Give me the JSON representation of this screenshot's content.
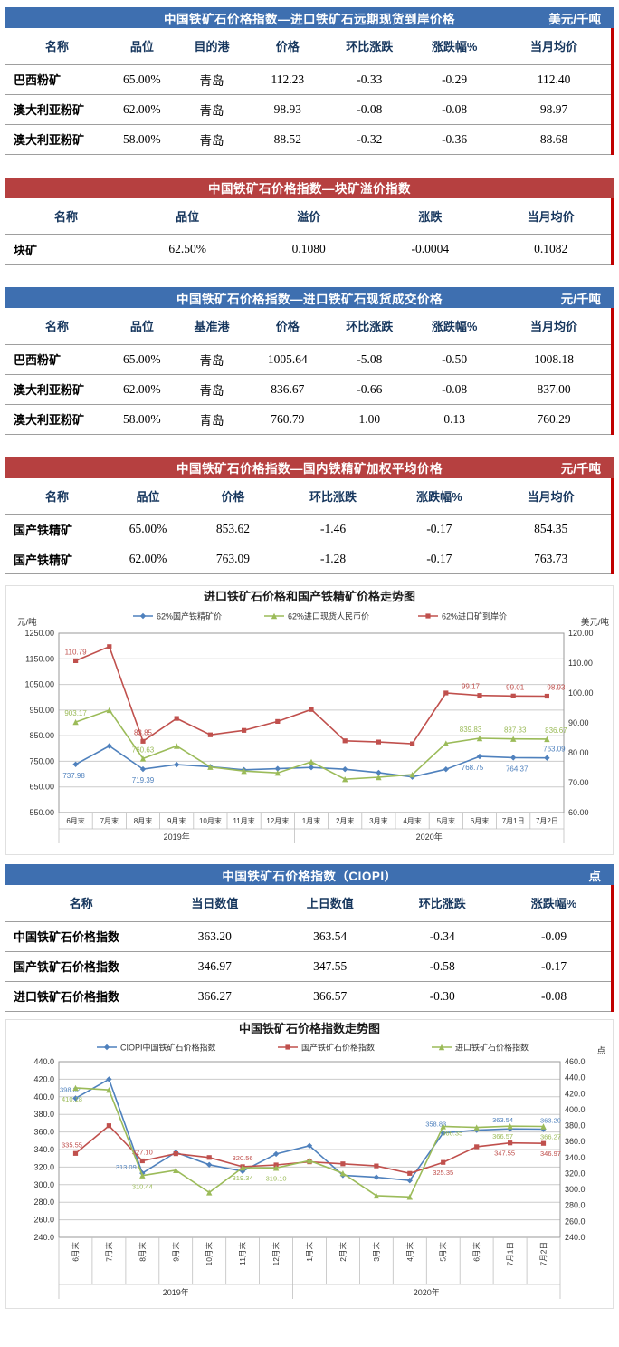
{
  "accent": {
    "header_blue": "#3E6FB0",
    "header_red": "#B64040",
    "column_header_text": "#17375E",
    "row_edge_mark": "#C00000",
    "series_blue": "#4F81BD",
    "series_red": "#C0504D",
    "series_green": "#9BBB59"
  },
  "tables": [
    {
      "style": "blue",
      "title": "中国铁矿石价格指数—进口铁矿石远期现货到岸价格",
      "unit": "美元/千吨",
      "columns": [
        "名称",
        "品位",
        "目的港",
        "价格",
        "环比涨跌",
        "涨跌幅%",
        "当月均价"
      ],
      "rows": [
        [
          "巴西粉矿",
          "65.00%",
          "青岛",
          "112.23",
          "-0.33",
          "-0.29",
          "112.40"
        ],
        [
          "澳大利亚粉矿",
          "62.00%",
          "青岛",
          "98.93",
          "-0.08",
          "-0.08",
          "98.97"
        ],
        [
          "澳大利亚粉矿",
          "58.00%",
          "青岛",
          "88.52",
          "-0.32",
          "-0.36",
          "88.68"
        ]
      ]
    },
    {
      "style": "red",
      "title": "中国铁矿石价格指数—块矿溢价指数",
      "unit": "",
      "columns": [
        "名称",
        "品位",
        "溢价",
        "涨跌",
        "当月均价"
      ],
      "rows": [
        [
          "块矿",
          "62.50%",
          "0.1080",
          "-0.0004",
          "0.1082"
        ]
      ]
    },
    {
      "style": "blue",
      "title": "中国铁矿石价格指数—进口铁矿石现货成交价格",
      "unit": "元/千吨",
      "columns": [
        "名称",
        "品位",
        "基准港",
        "价格",
        "环比涨跌",
        "涨跌幅%",
        "当月均价"
      ],
      "rows": [
        [
          "巴西粉矿",
          "65.00%",
          "青岛",
          "1005.64",
          "-5.08",
          "-0.50",
          "1008.18"
        ],
        [
          "澳大利亚粉矿",
          "62.00%",
          "青岛",
          "836.67",
          "-0.66",
          "-0.08",
          "837.00"
        ],
        [
          "澳大利亚粉矿",
          "58.00%",
          "青岛",
          "760.79",
          "1.00",
          "0.13",
          "760.29"
        ]
      ]
    },
    {
      "style": "red",
      "title": "中国铁矿石价格指数—国内铁精矿加权平均价格",
      "unit": "元/千吨",
      "columns": [
        "名称",
        "品位",
        "价格",
        "环比涨跌",
        "涨跌幅%",
        "当月均价"
      ],
      "rows": [
        [
          "国产铁精矿",
          "65.00%",
          "853.62",
          "-1.46",
          "-0.17",
          "854.35"
        ],
        [
          "国产铁精矿",
          "62.00%",
          "763.09",
          "-1.28",
          "-0.17",
          "763.73"
        ]
      ]
    },
    {
      "style": "blue",
      "title": "中国铁矿石价格指数（CIOPI）",
      "unit": "点",
      "columns": [
        "名称",
        "当日数值",
        "上日数值",
        "环比涨跌",
        "涨跌幅%"
      ],
      "rows": [
        [
          "中国铁矿石价格指数",
          "363.20",
          "363.54",
          "-0.34",
          "-0.09"
        ],
        [
          "国产铁矿石价格指数",
          "346.97",
          "347.55",
          "-0.58",
          "-0.17"
        ],
        [
          "进口铁矿石价格指数",
          "366.27",
          "366.57",
          "-0.30",
          "-0.08"
        ]
      ]
    }
  ],
  "chart_data": [
    {
      "type": "line",
      "title": "进口铁矿石价格和国产铁精矿价格走势图",
      "left_axis": {
        "label": "元/吨",
        "min": 550,
        "max": 1250,
        "step": 100,
        "decimals": 2
      },
      "right_axis": {
        "label": "美元/吨",
        "min": 60,
        "max": 120,
        "step": 10,
        "decimals": 2
      },
      "categories": [
        "6月末",
        "7月末",
        "8月末",
        "9月末",
        "10月末",
        "11月末",
        "12月末",
        "1月末",
        "2月末",
        "3月末",
        "4月末",
        "5月末",
        "6月末",
        "7月1日",
        "7月2日"
      ],
      "year_groups": [
        {
          "label": "2019年",
          "span": 7
        },
        {
          "label": "2020年",
          "span": 8
        }
      ],
      "grid": true,
      "legend_position": "top",
      "series": [
        {
          "name": "62%国产铁精矿价",
          "color": "#4F81BD",
          "marker": "diamond",
          "axis": "left",
          "values": [
            737.98,
            810.0,
            719.39,
            737.0,
            729.0,
            717.0,
            721.0,
            726.0,
            719.0,
            706.0,
            689.0,
            719.0,
            768.75,
            764.37,
            763.09
          ],
          "labels": [
            [
              0,
              "737.98",
              -2,
              15
            ],
            [
              2,
              "719.39",
              0,
              15
            ],
            [
              12,
              "768.75",
              -8,
              15
            ],
            [
              13,
              "764.37",
              4,
              15
            ],
            [
              14,
              "763.09",
              8,
              -7
            ]
          ]
        },
        {
          "name": "62%进口现货人民币价",
          "color": "#9BBB59",
          "marker": "triangle",
          "axis": "left",
          "values": [
            903.17,
            950.0,
            760.63,
            810.0,
            728.0,
            712.0,
            705.0,
            748.0,
            680.0,
            688.0,
            698.0,
            820.0,
            839.83,
            837.33,
            836.67
          ],
          "labels": [
            [
              0,
              "903.17",
              0,
              -7
            ],
            [
              2,
              "760.63",
              0,
              -7
            ],
            [
              12,
              "839.83",
              -10,
              -7
            ],
            [
              13,
              "837.33",
              2,
              -7
            ],
            [
              14,
              "836.67",
              10,
              -7
            ]
          ]
        },
        {
          "name": "62%进口矿到岸价",
          "color": "#C0504D",
          "marker": "square",
          "axis": "right",
          "values": [
            110.79,
            115.5,
            83.85,
            91.5,
            86.0,
            87.5,
            90.5,
            94.5,
            84.0,
            83.6,
            83.0,
            100.0,
            99.17,
            99.01,
            98.93
          ],
          "labels": [
            [
              0,
              "110.79",
              0,
              -7
            ],
            [
              2,
              "83.85",
              0,
              -7
            ],
            [
              12,
              "99.17",
              -10,
              -7
            ],
            [
              13,
              "99.01",
              2,
              -7
            ],
            [
              14,
              "98.93",
              10,
              -7
            ]
          ]
        }
      ]
    },
    {
      "type": "line",
      "title": "中国铁矿石价格指数走势图",
      "left_axis": {
        "label": "",
        "min": 240,
        "max": 440,
        "step": 20,
        "decimals": 1
      },
      "right_axis": {
        "label": "点",
        "min": 240,
        "max": 460,
        "step": 20,
        "decimals": 1
      },
      "categories": [
        "6月末",
        "7月末",
        "8月末",
        "9月末",
        "10月末",
        "11月末",
        "12月末",
        "1月末",
        "2月末",
        "3月末",
        "4月末",
        "5月末",
        "6月末",
        "7月1日",
        "7月2日"
      ],
      "year_groups": [
        {
          "label": "2019年",
          "span": 7
        },
        {
          "label": "2020年",
          "span": 8
        }
      ],
      "grid": true,
      "legend_position": "top",
      "series": [
        {
          "name": "CIOPI中国铁矿石价格指数",
          "color": "#4F81BD",
          "marker": "diamond",
          "axis": "left",
          "values": [
            398.32,
            420.02,
            313.09,
            336.81,
            322.7,
            315.33,
            334.93,
            344.35,
            310.7,
            308.49,
            304.74,
            358.83,
            362.1,
            363.54,
            363.2
          ],
          "labels": [
            [
              0,
              "398.32",
              -6,
              -7
            ],
            [
              2,
              "313.09",
              -18,
              -4
            ],
            [
              11,
              "358.83",
              -8,
              -7
            ],
            [
              13,
              "363.54",
              -8,
              -7
            ],
            [
              14,
              "363.20",
              8,
              -7
            ]
          ]
        },
        {
          "name": "国产铁矿石价格指数",
          "color": "#C0504D",
          "marker": "square",
          "axis": "left",
          "values": [
            335.55,
            367.16,
            327.1,
            335.28,
            330.95,
            320.56,
            322.47,
            325.96,
            323.76,
            321.33,
            312.93,
            325.35,
            343.2,
            347.55,
            346.97
          ],
          "labels": [
            [
              0,
              "335.55",
              -4,
              -7
            ],
            [
              2,
              "327.10",
              0,
              -7
            ],
            [
              5,
              "320.56",
              0,
              -7
            ],
            [
              11,
              "325.35",
              0,
              14
            ],
            [
              13,
              "347.55",
              -6,
              14
            ],
            [
              14,
              "346.97",
              8,
              14
            ]
          ]
        },
        {
          "name": "进口铁矿石价格指数",
          "color": "#9BBB59",
          "marker": "triangle",
          "axis": "left",
          "values": [
            410.18,
            407.8,
            310.44,
            316.53,
            291.13,
            319.34,
            319.1,
            327.39,
            313.0,
            287.5,
            286.1,
            366.35,
            365.2,
            366.57,
            366.27
          ],
          "labels": [
            [
              0,
              "410.18",
              -4,
              15
            ],
            [
              2,
              "310.44",
              0,
              15
            ],
            [
              5,
              "319.34",
              0,
              14
            ],
            [
              6,
              "319.10",
              0,
              14
            ],
            [
              11,
              "366.35",
              10,
              10
            ],
            [
              13,
              "366.57",
              -8,
              14
            ],
            [
              14,
              "366.27",
              8,
              14
            ]
          ]
        }
      ]
    }
  ]
}
